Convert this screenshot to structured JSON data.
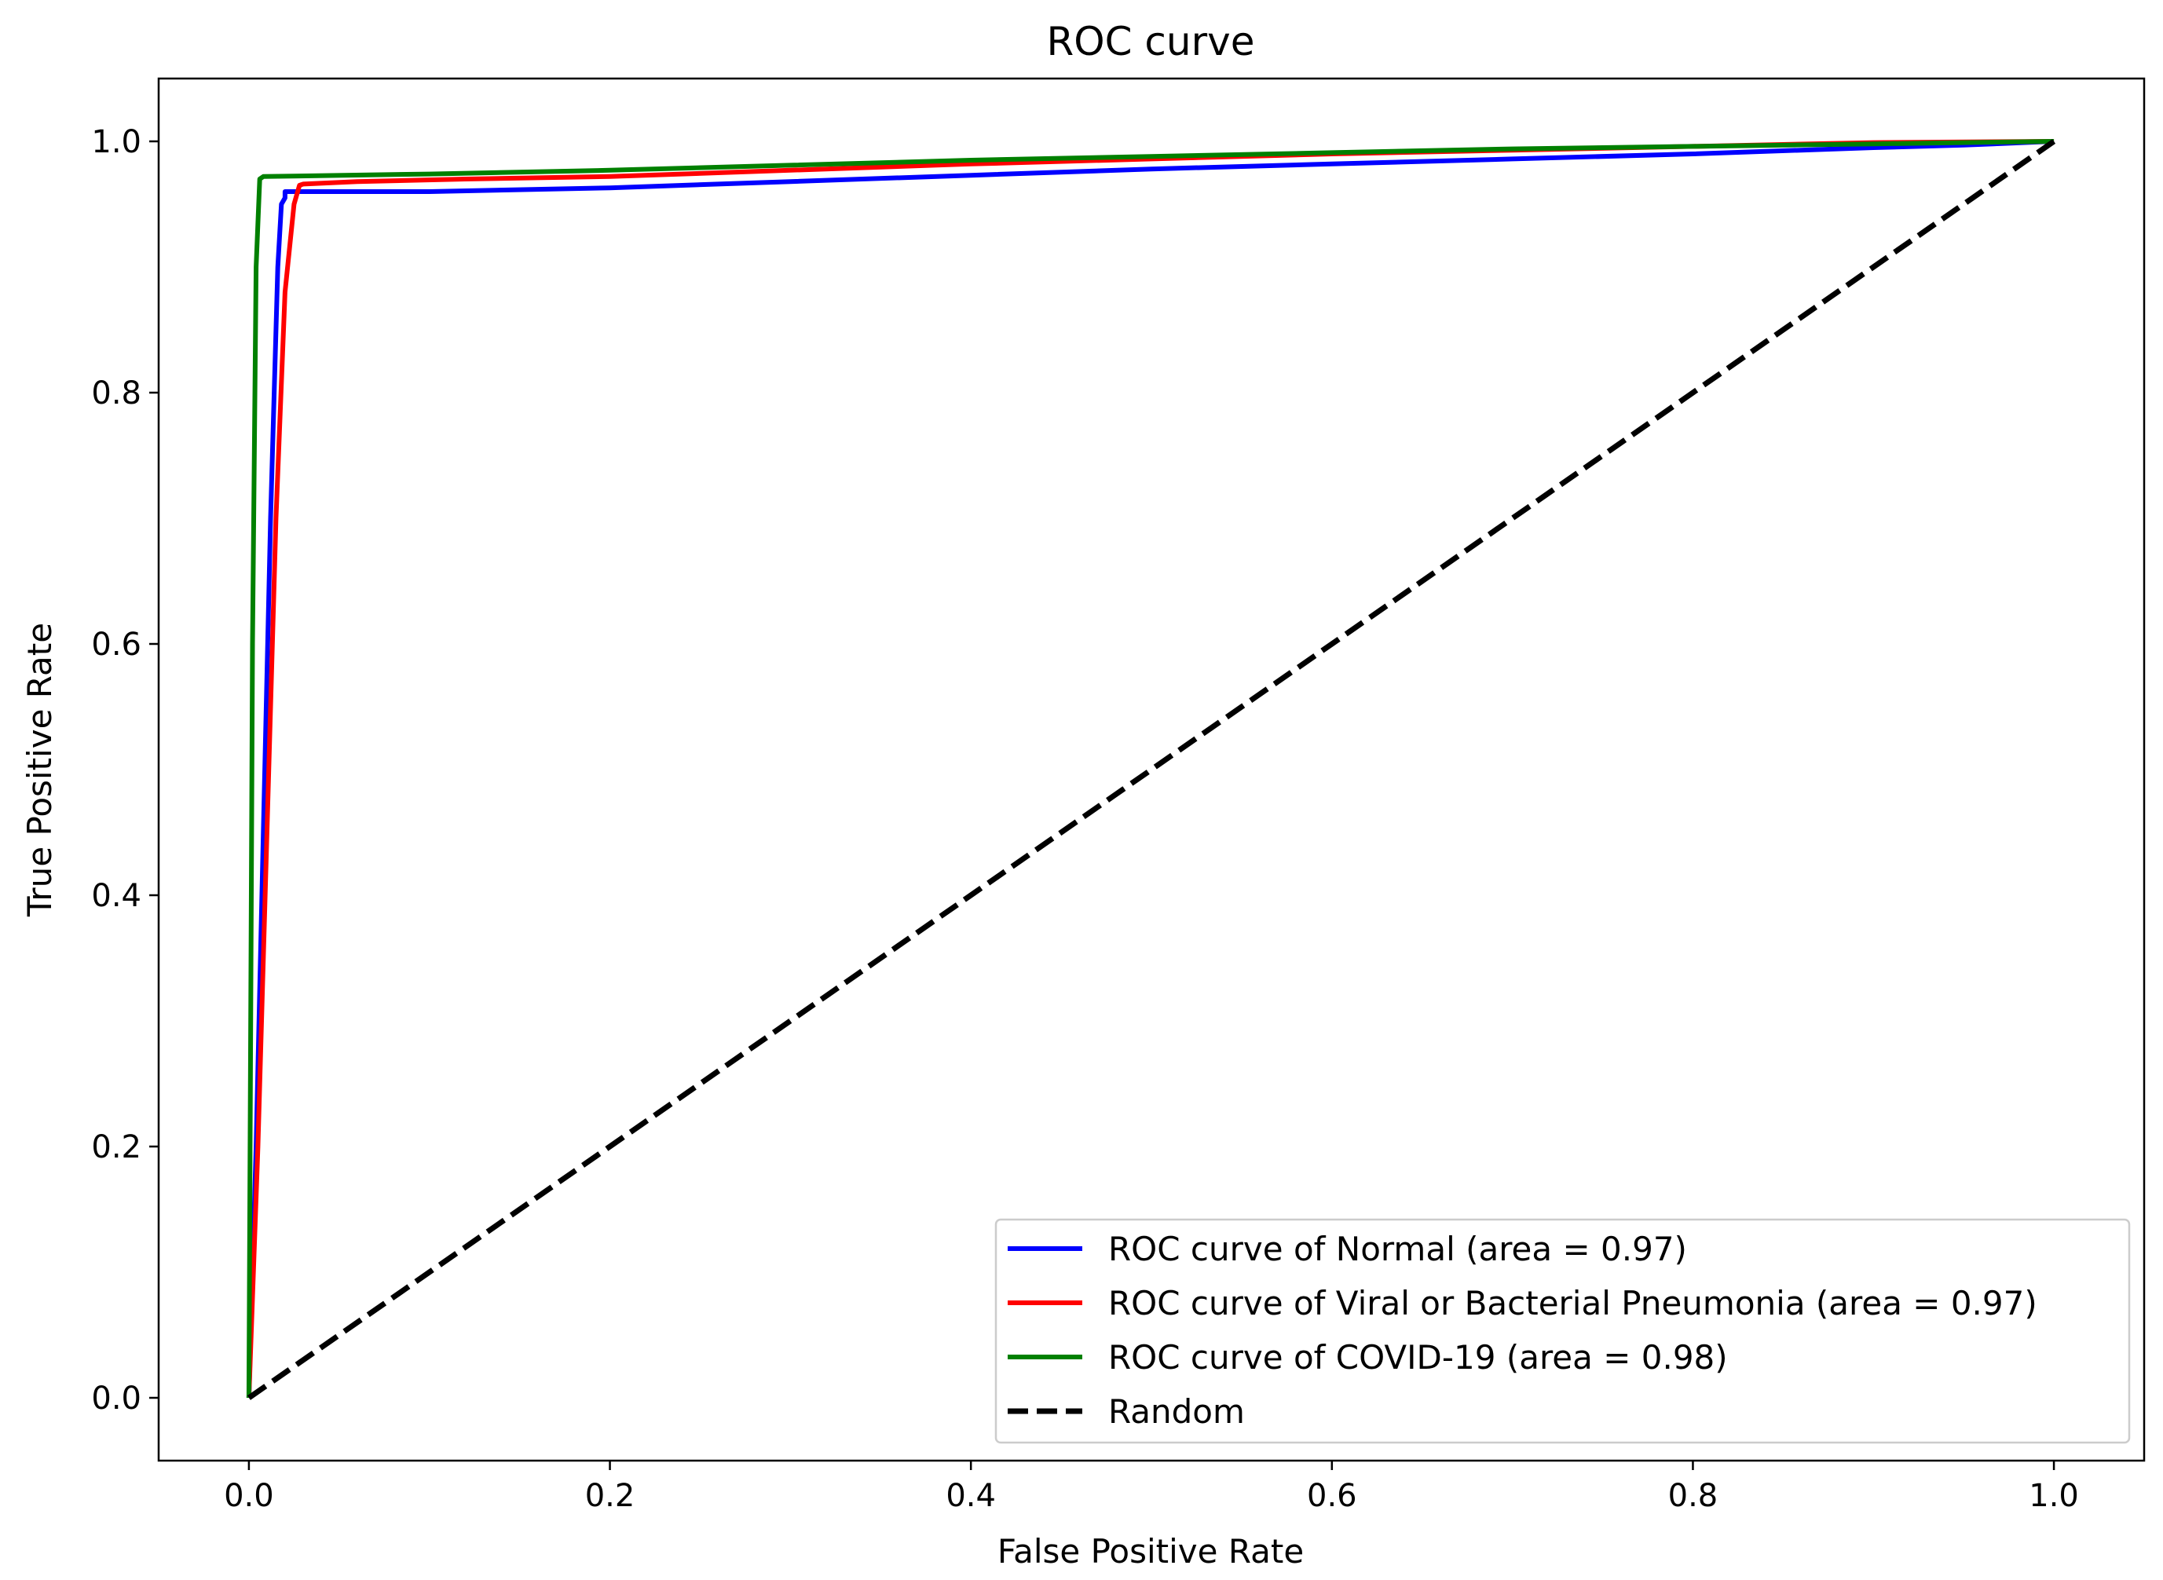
{
  "chart_data": {
    "type": "line",
    "title": "ROC curve",
    "xlabel": "False Positive Rate",
    "ylabel": "True Positive Rate",
    "xlim": [
      -0.05,
      1.05
    ],
    "ylim": [
      -0.05,
      1.05
    ],
    "x_ticks": [
      0.0,
      0.2,
      0.4,
      0.6,
      0.8,
      1.0
    ],
    "x_tick_labels": [
      "0.0",
      "0.2",
      "0.4",
      "0.6",
      "0.8",
      "1.0"
    ],
    "y_ticks": [
      0.0,
      0.2,
      0.4,
      0.6,
      0.8,
      1.0
    ],
    "y_tick_labels": [
      "0.0",
      "0.2",
      "0.4",
      "0.6",
      "0.8",
      "1.0"
    ],
    "grid": false,
    "legend_position": "bottom-right",
    "series": [
      {
        "name": "ROC curve of Normal (area = 0.97)",
        "color": "#0000ff",
        "style": "solid",
        "x": [
          0.0,
          0.004,
          0.008,
          0.012,
          0.016,
          0.018,
          0.02,
          0.02,
          0.05,
          0.1,
          0.2,
          0.3,
          0.4,
          0.5,
          0.6,
          0.7,
          0.8,
          0.9,
          0.95,
          1.0
        ],
        "y": [
          0.0,
          0.2,
          0.45,
          0.7,
          0.9,
          0.95,
          0.955,
          0.96,
          0.96,
          0.96,
          0.963,
          0.968,
          0.973,
          0.978,
          0.982,
          0.986,
          0.99,
          0.995,
          0.997,
          1.0
        ]
      },
      {
        "name": "ROC curve of Viral or Bacterial Pneumonia (area = 0.97)",
        "color": "#ff0000",
        "style": "solid",
        "x": [
          0.0,
          0.005,
          0.01,
          0.015,
          0.02,
          0.025,
          0.028,
          0.03,
          0.06,
          0.12,
          0.2,
          0.3,
          0.4,
          0.5,
          0.6,
          0.7,
          0.8,
          0.9,
          1.0
        ],
        "y": [
          0.0,
          0.2,
          0.45,
          0.7,
          0.88,
          0.95,
          0.965,
          0.966,
          0.968,
          0.97,
          0.972,
          0.977,
          0.982,
          0.986,
          0.99,
          0.993,
          0.996,
          0.999,
          1.0
        ]
      },
      {
        "name": "ROC curve of COVID-19 (area = 0.98)",
        "color": "#008000",
        "style": "solid",
        "x": [
          0.0,
          0.002,
          0.004,
          0.006,
          0.008,
          0.1,
          0.2,
          0.3,
          0.4,
          0.5,
          0.6,
          0.7,
          0.8,
          0.9,
          1.0
        ],
        "y": [
          0.0,
          0.6,
          0.9,
          0.97,
          0.972,
          0.974,
          0.977,
          0.981,
          0.985,
          0.988,
          0.991,
          0.994,
          0.996,
          0.998,
          1.0
        ]
      },
      {
        "name": "Random",
        "color": "#000000",
        "style": "dashed",
        "x": [
          0.0,
          1.0
        ],
        "y": [
          0.0,
          1.0
        ]
      }
    ]
  }
}
